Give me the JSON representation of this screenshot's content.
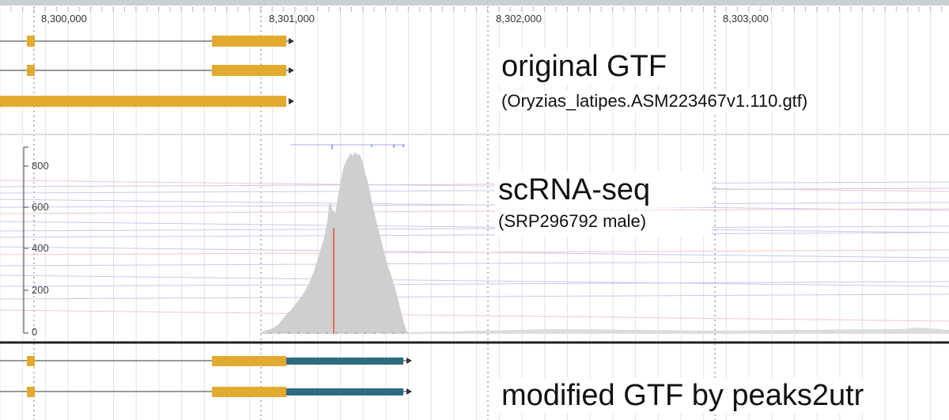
{
  "ruler": {
    "ticks": [
      "8,300,000",
      "8,301,000",
      "8,302,000",
      "8,303,000"
    ]
  },
  "tracks": {
    "original_gtf": {
      "title": "original GTF",
      "subtitle": "(Oryzias_latipes.ASM223467v1.110.gtf)"
    },
    "coverage": {
      "title": "scRNA-seq",
      "subtitle": "(SRP296792 male)",
      "y_ticks": [
        "800",
        "600",
        "400",
        "200",
        "0"
      ]
    },
    "modified_gtf": {
      "title": "modified GTF by peaks2utr"
    }
  },
  "colors": {
    "exon": "#e2aa2e",
    "utr_extension": "#2e6a82",
    "coverage_fill": "#cfcfcf",
    "sashimi_arcs": "#b9b9ee",
    "divider": "#222222",
    "ruler_strip": "#c7d1d4"
  }
}
